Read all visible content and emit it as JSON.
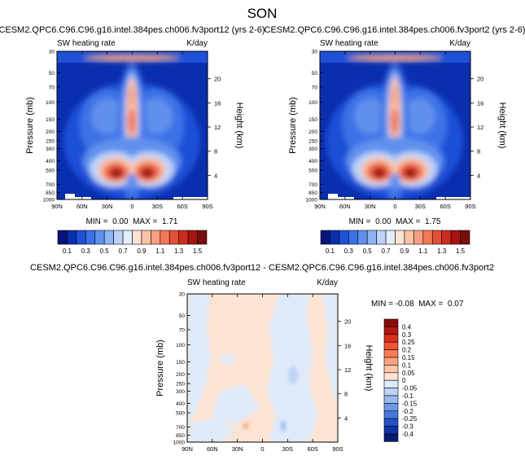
{
  "figure": {
    "title": "SON"
  },
  "chart_data": [
    {
      "type": "heatmap",
      "title": "CESM2.QPC6.C96.C96.g16.intel.384pes.ch006.fv3port12 (yrs 2-6)",
      "left_label": "SW heating rate",
      "right_label": "K/day",
      "xlabel": "",
      "ylabel": "Pressure (mb)",
      "y2label": "Height (km)",
      "x_ticks": [
        "90N",
        "60N",
        "30N",
        "0",
        "30S",
        "60S",
        "90S"
      ],
      "y_ticks": [
        "30",
        "50",
        "70",
        "100",
        "150",
        "200",
        "250",
        "300",
        "400",
        "500",
        "700",
        "850",
        "1000"
      ],
      "y2_ticks": [
        "20",
        "16",
        "12",
        "8",
        "4"
      ],
      "xlim": [
        90,
        -90
      ],
      "ylim": [
        1000,
        30
      ],
      "stats_text": "MIN =  0.00  MAX =  1.71",
      "min": 0.0,
      "max": 1.71
    },
    {
      "type": "heatmap",
      "title": "CESM2.QPC6.C96.C96.g16.intel.384pes.ch006.fv3port2 (yrs 2-6)",
      "left_label": "SW heating rate",
      "right_label": "K/day",
      "xlabel": "",
      "ylabel": "Pressure (mb)",
      "y2label": "Height (km)",
      "x_ticks": [
        "90N",
        "60N",
        "30N",
        "0",
        "30S",
        "60S",
        "90S"
      ],
      "y_ticks": [
        "30",
        "50",
        "70",
        "100",
        "150",
        "200",
        "250",
        "300",
        "400",
        "500",
        "700",
        "850",
        "1000"
      ],
      "y2_ticks": [
        "20",
        "16",
        "12",
        "8",
        "4"
      ],
      "xlim": [
        90,
        -90
      ],
      "ylim": [
        1000,
        30
      ],
      "stats_text": "MIN =  0.00  MAX =  1.75",
      "min": 0.0,
      "max": 1.75
    },
    {
      "type": "heatmap",
      "title": "CESM2.QPC6.C96.C96.g16.intel.384pes.ch006.fv3port12 - CESM2.QPC6.C96.C96.g16.intel.384pes.ch006.fv3port2",
      "left_label": "SW heating rate",
      "right_label": "K/day",
      "xlabel": "",
      "ylabel": "Pressure (mb)",
      "y2label": "Height (km)",
      "x_ticks": [
        "90N",
        "60N",
        "30N",
        "0",
        "30S",
        "60S",
        "90S"
      ],
      "y_ticks": [
        "30",
        "50",
        "70",
        "100",
        "150",
        "200",
        "250",
        "300",
        "400",
        "500",
        "700",
        "850",
        "1000"
      ],
      "y2_ticks": [
        "20",
        "16",
        "12",
        "8",
        "4"
      ],
      "xlim": [
        90,
        -90
      ],
      "ylim": [
        1000,
        30
      ],
      "stats_text": "MIN = -0.08  MAX =  0.07",
      "min": -0.08,
      "max": 0.07
    }
  ],
  "colorbars": {
    "abs": {
      "labels": [
        "0.1",
        "0.3",
        "0.5",
        "0.7",
        "0.9",
        "1.1",
        "1.3",
        "1.5"
      ],
      "colors": [
        "#08147a",
        "#0a2fae",
        "#1f50d8",
        "#3d72e6",
        "#6190ee",
        "#8fb4f4",
        "#bcd3f9",
        "#e5eefd",
        "#fde2d4",
        "#fbc3a8",
        "#f8a07f",
        "#f27858",
        "#e55036",
        "#cc2c1f",
        "#a51412",
        "#7a0c0c"
      ]
    },
    "diff": {
      "labels": [
        "0.4",
        "0.3",
        "0.25",
        "0.2",
        "0.15",
        "0.1",
        "0.05",
        "0",
        "-0.05",
        "-0.1",
        "-0.15",
        "-0.2",
        "-0.25",
        "-0.3",
        "-0.4"
      ],
      "colors": [
        "#8b0b0b",
        "#b3170f",
        "#d9301c",
        "#f05533",
        "#f97b56",
        "#fba27f",
        "#fdc6a8",
        "#fde3d2",
        "#dfeaf9",
        "#bfd3f6",
        "#99b9f0",
        "#6f98e6",
        "#4776dc",
        "#2552c6",
        "#1133a2",
        "#081b72"
      ]
    }
  }
}
